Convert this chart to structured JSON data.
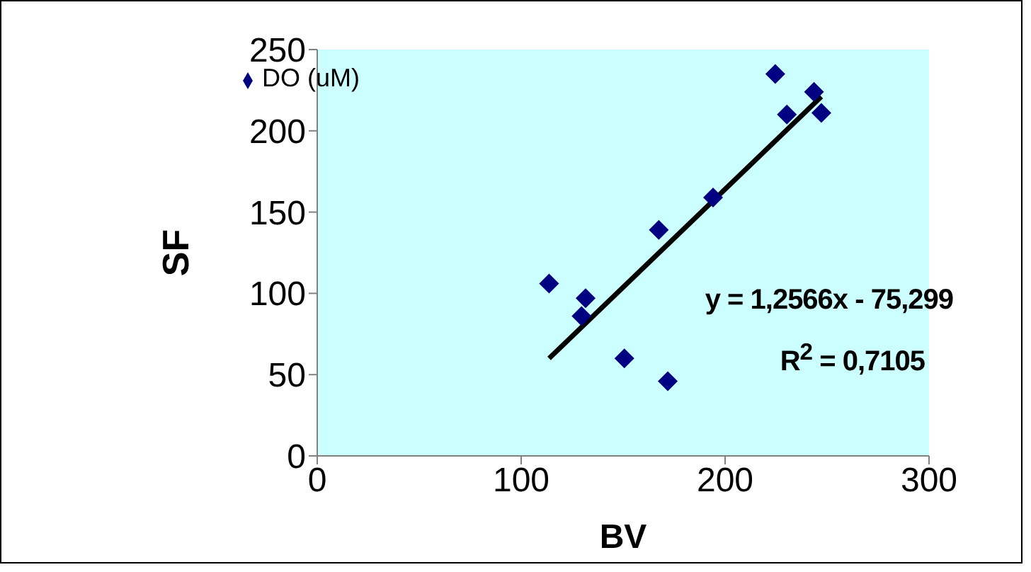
{
  "chart_data": {
    "type": "scatter",
    "xlabel": "BV",
    "ylabel": "SF",
    "marker": "diamond",
    "legend": "top left",
    "grid": false,
    "xlim": [
      0,
      300
    ],
    "xticks": [
      0,
      100,
      200,
      300
    ],
    "ylim": [
      0,
      250
    ],
    "yticks": [
      0,
      50,
      100,
      150,
      200,
      250
    ],
    "series": [
      {
        "name": "DO (uM)",
        "color": "#000080",
        "x": [
          113.7,
          131.6,
          129.6,
          150.6,
          171.9,
          167.5,
          194.1,
          224.6,
          230.3,
          243.6,
          247.2
        ],
        "values": [
          106,
          97,
          86,
          60,
          46,
          139,
          159,
          235,
          210,
          224,
          211
        ]
      },
      {
        "type": "line",
        "color": "#000000",
        "marker": "none",
        "x": [
          113.7,
          247.2
        ],
        "values": [
          60,
          221
        ]
      }
    ],
    "annotations": [
      "y = 1,2566x - 75,299",
      "R$^{2}$ = 0,7105"
    ]
  }
}
